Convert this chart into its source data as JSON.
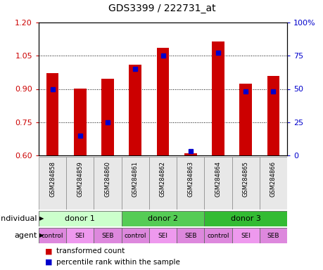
{
  "title": "GDS3399 / 222731_at",
  "samples": [
    "GSM284858",
    "GSM284859",
    "GSM284860",
    "GSM284861",
    "GSM284862",
    "GSM284863",
    "GSM284864",
    "GSM284865",
    "GSM284866"
  ],
  "transformed_counts": [
    0.97,
    0.9,
    0.945,
    1.01,
    1.085,
    0.61,
    1.115,
    0.925,
    0.96
  ],
  "percentile_ranks": [
    50,
    15,
    25,
    65,
    75,
    3,
    77,
    48,
    48
  ],
  "ylim_left": [
    0.6,
    1.2
  ],
  "ylim_right": [
    0,
    100
  ],
  "yticks_left": [
    0.6,
    0.75,
    0.9,
    1.05,
    1.2
  ],
  "yticks_right": [
    0,
    25,
    50,
    75,
    100
  ],
  "bar_color": "#cc0000",
  "dot_color": "#0000cc",
  "bar_bottom": 0.6,
  "individuals": [
    {
      "label": "donor 1",
      "start": 0,
      "end": 3,
      "color": "#ccffcc"
    },
    {
      "label": "donor 2",
      "start": 3,
      "end": 6,
      "color": "#55cc55"
    },
    {
      "label": "donor 3",
      "start": 6,
      "end": 9,
      "color": "#33bb33"
    }
  ],
  "agents": [
    {
      "label": "control"
    },
    {
      "label": "SEI"
    },
    {
      "label": "SEB"
    },
    {
      "label": "control"
    },
    {
      "label": "SEI"
    },
    {
      "label": "SEB"
    },
    {
      "label": "control"
    },
    {
      "label": "SEI"
    },
    {
      "label": "SEB"
    }
  ],
  "agent_colors": {
    "control": "#dd88dd",
    "SEI": "#ee99ee",
    "SEB": "#dd88dd"
  },
  "legend_bar_label": "transformed count",
  "legend_dot_label": "percentile rank within the sample",
  "individual_label": "individual",
  "agent_label": "agent",
  "tick_color_left": "#cc0000",
  "tick_color_right": "#0000cc",
  "bg_color": "#e8e8e8"
}
